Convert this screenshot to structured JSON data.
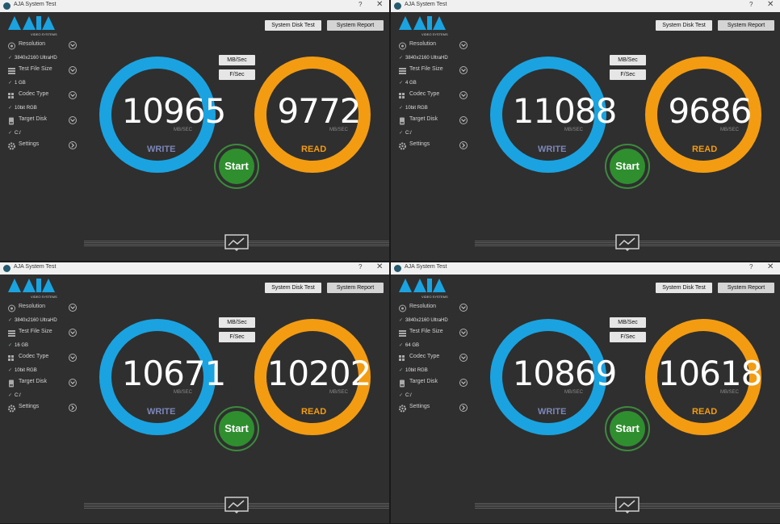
{
  "app": {
    "title": "AJA System Test",
    "help": "?",
    "close": "✕",
    "buttons": {
      "disk_test": "System Disk Test",
      "report": "System Report",
      "mb_sec": "MB/Sec",
      "f_sec": "F/Sec",
      "start": "Start"
    },
    "sidebar_labels": {
      "resolution": "Resolution",
      "file_size": "Test File Size",
      "codec": "Codec Type",
      "disk": "Target Disk",
      "settings": "Settings"
    },
    "unit": "MB/SEC",
    "write_label": "WRITE",
    "read_label": "READ",
    "colors": {
      "write_ring": "#1aa3e0",
      "read_ring": "#f39c12",
      "start": "#2f8f2f",
      "bg": "#2f2f2f"
    }
  },
  "windows": [
    {
      "resolution": "3840x2160 UltraHD",
      "file_size": "1 GB",
      "codec": "10bit RGB",
      "disk": "C:/",
      "write": "10965",
      "read": "9772"
    },
    {
      "resolution": "3840x2160 UltraHD",
      "file_size": "4 GB",
      "codec": "10bit RGB",
      "disk": "C:/",
      "write": "11088",
      "read": "9686"
    },
    {
      "resolution": "3840x2160 UltraHD",
      "file_size": "16 GB",
      "codec": "10bit RGB",
      "disk": "C:/",
      "write": "10671",
      "read": "10202"
    },
    {
      "resolution": "3840x2160 UltraHD",
      "file_size": "64 GB",
      "codec": "10bit RGB",
      "disk": "C:/",
      "write": "10869",
      "read": "10618"
    }
  ]
}
